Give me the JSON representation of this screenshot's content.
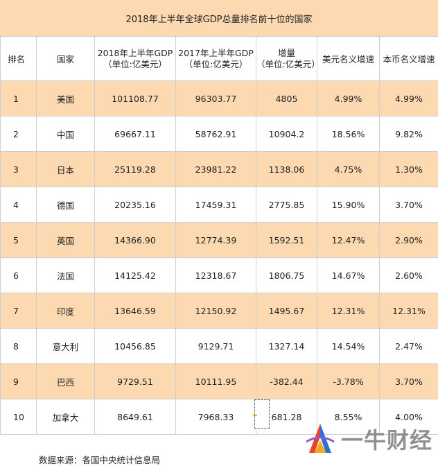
{
  "title": "2018年上半年全球GDP总量排名前十位的国家",
  "headers": {
    "rank": "排名",
    "country": "国家",
    "gdp2018_l1": "2018年上半年GDP",
    "gdp2018_l2": "（单位:亿美元）",
    "gdp2017_l1": "2017年上半年GDP",
    "gdp2017_l2": "（单位:亿美元）",
    "inc_l1": "增量",
    "inc_l2": "（单位:亿美元）",
    "usd_growth": "美元名义增速",
    "local_growth": "本币名义增速"
  },
  "rows": [
    {
      "rank": "1",
      "country": "美国",
      "gdp2018": "101108.77",
      "gdp2017": "96303.77",
      "inc": "4805",
      "usd": "4.99%",
      "local": "4.99%"
    },
    {
      "rank": "2",
      "country": "中国",
      "gdp2018": "69667.11",
      "gdp2017": "58762.91",
      "inc": "10904.2",
      "usd": "18.56%",
      "local": "9.82%"
    },
    {
      "rank": "3",
      "country": "日本",
      "gdp2018": "25119.28",
      "gdp2017": "23981.22",
      "inc": "1138.06",
      "usd": "4.75%",
      "local": "1.30%"
    },
    {
      "rank": "4",
      "country": "德国",
      "gdp2018": "20235.16",
      "gdp2017": "17459.31",
      "inc": "2775.85",
      "usd": "15.90%",
      "local": "3.70%"
    },
    {
      "rank": "5",
      "country": "英国",
      "gdp2018": "14366.90",
      "gdp2017": "12774.39",
      "inc": "1592.51",
      "usd": "12.47%",
      "local": "2.90%"
    },
    {
      "rank": "6",
      "country": "法国",
      "gdp2018": "14125.42",
      "gdp2017": "12318.67",
      "inc": "1806.75",
      "usd": "14.67%",
      "local": "2.60%"
    },
    {
      "rank": "7",
      "country": "印度",
      "gdp2018": "13646.59",
      "gdp2017": "12150.92",
      "inc": "1495.67",
      "usd": "12.31%",
      "local": "12.31%"
    },
    {
      "rank": "8",
      "country": "意大利",
      "gdp2018": "10456.85",
      "gdp2017": "9129.71",
      "inc": "1327.14",
      "usd": "14.54%",
      "local": "2.47%"
    },
    {
      "rank": "9",
      "country": "巴西",
      "gdp2018": "9729.51",
      "gdp2017": "10111.95",
      "inc": "-382.44",
      "usd": "-3.78%",
      "local": "3.70%"
    },
    {
      "rank": "10",
      "country": "加拿大",
      "gdp2018": "8649.61",
      "gdp2017": "7968.33",
      "inc": "681.28",
      "usd": "8.55%",
      "local": "4.00%"
    }
  ],
  "source": "数据来源：各国中央统计信息局",
  "watermark": {
    "text": "一牛财经",
    "logo_colors": {
      "blue": "#2f6fcf",
      "red": "#e8452c",
      "orange": "#f5a623",
      "purple": "#8e5bd0"
    }
  },
  "colors": {
    "band": "#fcd9b1",
    "white": "#ffffff",
    "grid": "#cfcfcf"
  }
}
